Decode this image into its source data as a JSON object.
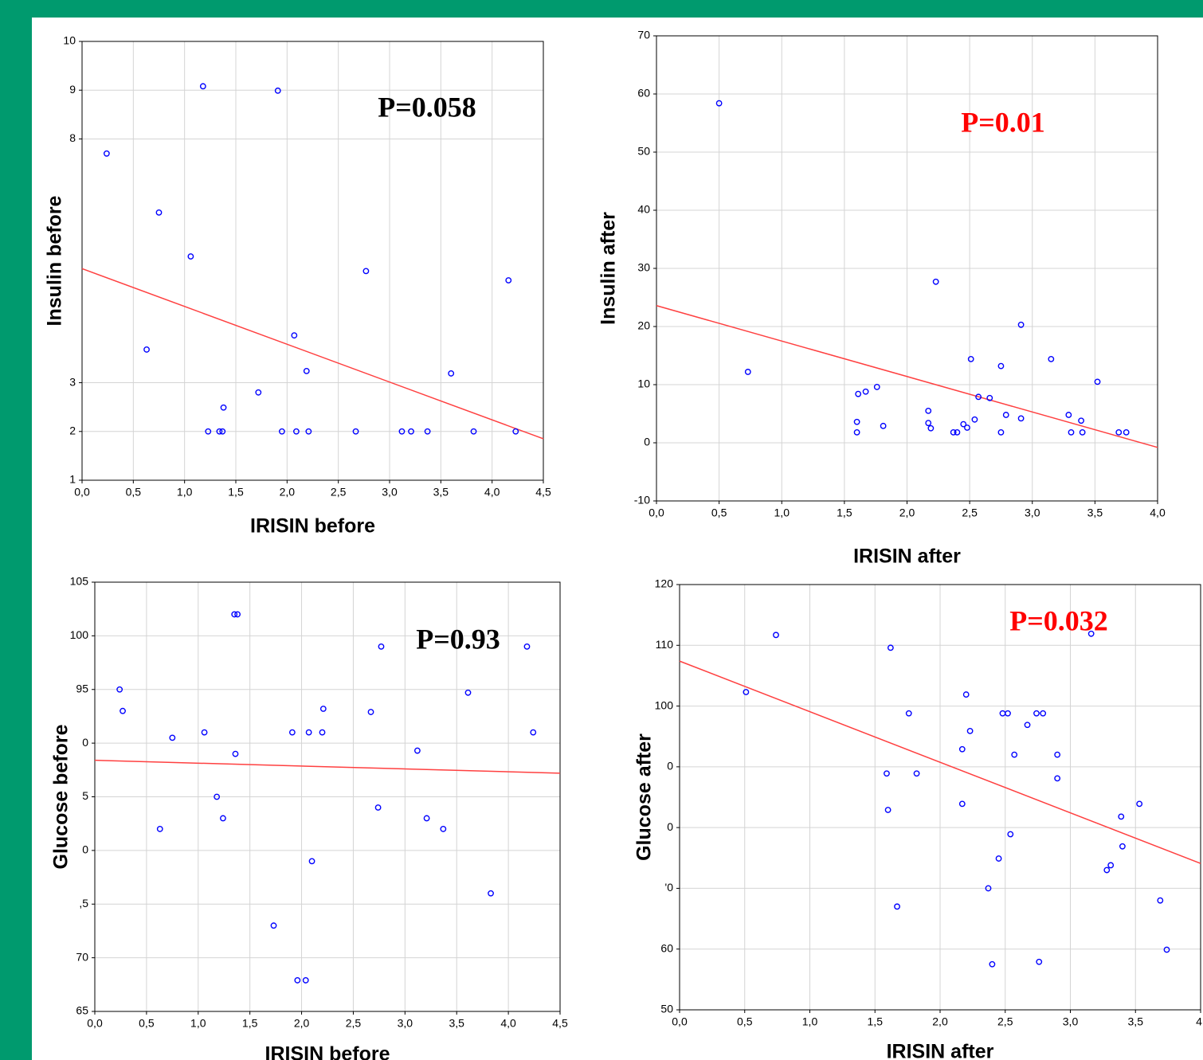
{
  "chart_data": [
    {
      "type": "scatter",
      "x_label": "IRISIN before",
      "y_label": "Insulin before",
      "annotation": {
        "text": "P=0.058",
        "color": "#000000"
      },
      "series": [
        {
          "color": "#0000ff",
          "x": [
            0.24,
            1.18,
            1.91,
            0.75,
            1.06,
            2.77,
            4.16,
            0.63,
            2.07,
            2.19,
            3.6,
            1.72,
            1.38,
            1.23,
            1.34,
            1.37,
            1.95,
            2.09,
            2.21,
            2.67,
            3.12,
            3.21,
            3.37,
            3.82,
            4.23
          ],
          "values": [
            7.7,
            9.08,
            8.99,
            6.49,
            5.59,
            5.29,
            5.1,
            3.68,
            3.97,
            3.24,
            3.19,
            2.8,
            2.49,
            2.0,
            2.0,
            2.0,
            2.0,
            2.0,
            2.0,
            2.0,
            2.0,
            2.0,
            2.0,
            2.0,
            2.0
          ]
        }
      ],
      "trendline": {
        "color": "#ff4040",
        "x": [
          0,
          4.5
        ],
        "values": [
          5.34,
          1.85
        ]
      },
      "xlim": [
        0,
        4.5
      ],
      "ylim": [
        1,
        10
      ],
      "xticks": [
        {
          "value": 0,
          "label": "0,0"
        },
        {
          "value": 0.5,
          "label": "0,5"
        },
        {
          "value": 1,
          "label": "1,0"
        },
        {
          "value": 1.5,
          "label": "1,5"
        },
        {
          "value": 2,
          "label": "2,0"
        },
        {
          "value": 2.5,
          "label": "2,5"
        },
        {
          "value": 3,
          "label": "3,0"
        },
        {
          "value": 3.5,
          "label": "3,5"
        },
        {
          "value": 4,
          "label": "4,0"
        },
        {
          "value": 4.5,
          "label": "4,5"
        }
      ],
      "yticks": [
        1,
        2,
        3,
        8,
        9,
        10
      ],
      "grid": true
    },
    {
      "type": "scatter",
      "x_label": "IRISIN after",
      "y_label": "Insulin after",
      "annotation": {
        "text": "P=0.01",
        "color": "#ff0000"
      },
      "series": [
        {
          "color": "#0000ff",
          "x": [
            0.5,
            0.73,
            2.23,
            2.91,
            2.51,
            3.15,
            2.75,
            3.52,
            1.76,
            1.67,
            1.61,
            2.57,
            2.66,
            2.17,
            2.79,
            3.29,
            2.54,
            2.91,
            3.39,
            1.6,
            2.17,
            2.45,
            1.81,
            2.19,
            2.48,
            1.6,
            2.37,
            2.4,
            2.75,
            3.31,
            3.4,
            3.69,
            3.75
          ],
          "values": [
            58.4,
            12.2,
            27.7,
            20.3,
            14.4,
            14.4,
            13.2,
            10.5,
            9.6,
            8.8,
            8.4,
            7.9,
            7.7,
            5.5,
            4.8,
            4.8,
            4.0,
            4.2,
            3.8,
            3.6,
            3.4,
            3.2,
            2.9,
            2.5,
            2.6,
            1.8,
            1.8,
            1.8,
            1.8,
            1.8,
            1.8,
            1.8,
            1.8
          ]
        }
      ],
      "trendline": {
        "color": "#ff4040",
        "x": [
          0,
          4
        ],
        "values": [
          23.6,
          -0.8
        ]
      },
      "xlim": [
        0,
        4
      ],
      "ylim": [
        -10,
        70
      ],
      "xticks": [
        {
          "value": 0,
          "label": "0,0"
        },
        {
          "value": 0.5,
          "label": "0,5"
        },
        {
          "value": 1,
          "label": "1,0"
        },
        {
          "value": 1.5,
          "label": "1,5"
        },
        {
          "value": 2,
          "label": "2,0"
        },
        {
          "value": 2.5,
          "label": "2,5"
        },
        {
          "value": 3,
          "label": "3,0"
        },
        {
          "value": 3.5,
          "label": "3,5"
        },
        {
          "value": 4,
          "label": "4,0"
        }
      ],
      "yticks": [
        -10,
        0,
        10,
        20,
        30,
        40,
        50,
        60,
        70
      ],
      "grid": true
    },
    {
      "type": "scatter",
      "x_label": "IRISIN before",
      "y_label": "Glucose before",
      "annotation": {
        "text": "P=0.93",
        "color": "#000000"
      },
      "series": [
        {
          "color": "#0000ff",
          "x": [
            0.24,
            0.27,
            0.63,
            0.75,
            1.06,
            1.18,
            1.24,
            1.35,
            1.38,
            1.36,
            1.73,
            1.91,
            1.96,
            2.04,
            2.07,
            2.1,
            2.2,
            2.21,
            2.67,
            2.74,
            2.77,
            3.12,
            3.21,
            3.37,
            3.61,
            3.83,
            4.18,
            4.24
          ],
          "values": [
            95.0,
            93.0,
            82.0,
            90.5,
            91.0,
            85.0,
            83.0,
            102.0,
            102.0,
            89.0,
            73.0,
            91.0,
            67.9,
            67.9,
            91.0,
            79.0,
            91.0,
            93.2,
            92.9,
            84.0,
            99.0,
            89.3,
            83.0,
            82.0,
            94.7,
            76.0,
            99.0,
            91.0
          ]
        }
      ],
      "trendline": {
        "color": "#ff4040",
        "x": [
          0,
          4.5
        ],
        "values": [
          88.4,
          87.2
        ]
      },
      "xlim": [
        0,
        4.5
      ],
      "ylim": [
        65,
        105
      ],
      "xticks": [
        {
          "value": 0,
          "label": "0,0"
        },
        {
          "value": 0.5,
          "label": "0,5"
        },
        {
          "value": 1,
          "label": "1,0"
        },
        {
          "value": 1.5,
          "label": "1,5"
        },
        {
          "value": 2,
          "label": "2,0"
        },
        {
          "value": 2.5,
          "label": "2,5"
        },
        {
          "value": 3,
          "label": "3,0"
        },
        {
          "value": 3.5,
          "label": "3,5"
        },
        {
          "value": 4,
          "label": "4,0"
        },
        {
          "value": 4.5,
          "label": "4,5"
        }
      ],
      "yticks": [
        65,
        70,
        {
          "value": 75,
          "label": ",5"
        },
        {
          "value": 80,
          "label": "0"
        },
        {
          "value": 85,
          "label": "5"
        },
        {
          "value": 90,
          "label": "0"
        },
        95,
        100,
        105
      ],
      "grid": true
    },
    {
      "type": "scatter",
      "x_label": "IRISIN after",
      "y_label": "Glucose after",
      "annotation": {
        "text": "P=0.032",
        "color": "#ff0000"
      },
      "series": [
        {
          "color": "#0000ff",
          "x": [
            0.51,
            0.74,
            1.62,
            1.59,
            1.6,
            1.67,
            1.76,
            1.82,
            2.17,
            2.2,
            2.23,
            2.17,
            2.37,
            2.4,
            2.45,
            2.48,
            2.52,
            2.54,
            2.57,
            2.67,
            2.74,
            2.79,
            2.76,
            2.9,
            2.9,
            3.16,
            3.28,
            3.31,
            3.39,
            3.4,
            3.53,
            3.69,
            3.74
          ],
          "values": [
            102.3,
            111.7,
            109.6,
            88.9,
            82.9,
            67.0,
            98.8,
            88.9,
            92.9,
            101.9,
            95.9,
            83.9,
            70.0,
            57.5,
            74.9,
            98.8,
            98.8,
            78.9,
            92.0,
            96.9,
            98.8,
            98.8,
            57.9,
            92.0,
            88.1,
            111.9,
            73.0,
            73.8,
            81.8,
            76.9,
            83.9,
            68.0,
            59.9
          ]
        }
      ],
      "trendline": {
        "color": "#ff4040",
        "x": [
          0,
          4
        ],
        "values": [
          107.4,
          74.1
        ]
      },
      "xlim": [
        0,
        4
      ],
      "ylim": [
        50,
        120
      ],
      "xticks": [
        {
          "value": 0,
          "label": "0,0"
        },
        {
          "value": 0.5,
          "label": "0,5"
        },
        {
          "value": 1,
          "label": "1,0"
        },
        {
          "value": 1.5,
          "label": "1,5"
        },
        {
          "value": 2,
          "label": "2,0"
        },
        {
          "value": 2.5,
          "label": "2,5"
        },
        {
          "value": 3,
          "label": "3,0"
        },
        {
          "value": 3.5,
          "label": "3,5"
        },
        {
          "value": 4,
          "label": "4,"
        }
      ],
      "yticks": [
        50,
        60,
        {
          "value": 70,
          "label": "'0"
        },
        {
          "value": 80,
          "label": "0"
        },
        {
          "value": 90,
          "label": "0"
        },
        100,
        110,
        120
      ],
      "grid": true
    }
  ]
}
